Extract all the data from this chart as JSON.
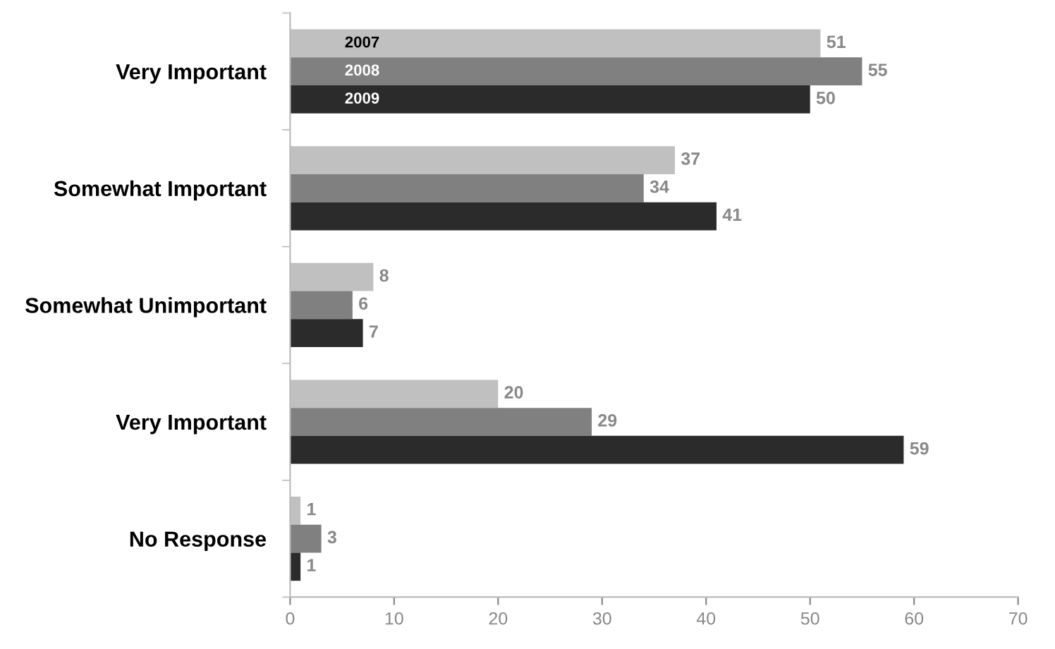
{
  "chart_data": {
    "type": "bar",
    "orientation": "horizontal",
    "categories": [
      "Very Important",
      "Somewhat Important",
      "Somewhat Unimportant",
      "Very Important",
      "No Response"
    ],
    "series": [
      {
        "name": "2007",
        "color": "#c0c0c0",
        "values": [
          51,
          37,
          8,
          20,
          1
        ]
      },
      {
        "name": "2008",
        "color": "#808080",
        "values": [
          55,
          34,
          6,
          29,
          3
        ]
      },
      {
        "name": "2009",
        "color": "#2b2b2b",
        "values": [
          50,
          41,
          7,
          59,
          1
        ]
      }
    ],
    "xlim": [
      0,
      70
    ],
    "xticks": [
      0,
      10,
      20,
      30,
      40,
      50,
      60,
      70
    ],
    "grid": false,
    "legend": false,
    "data_labels": true
  }
}
